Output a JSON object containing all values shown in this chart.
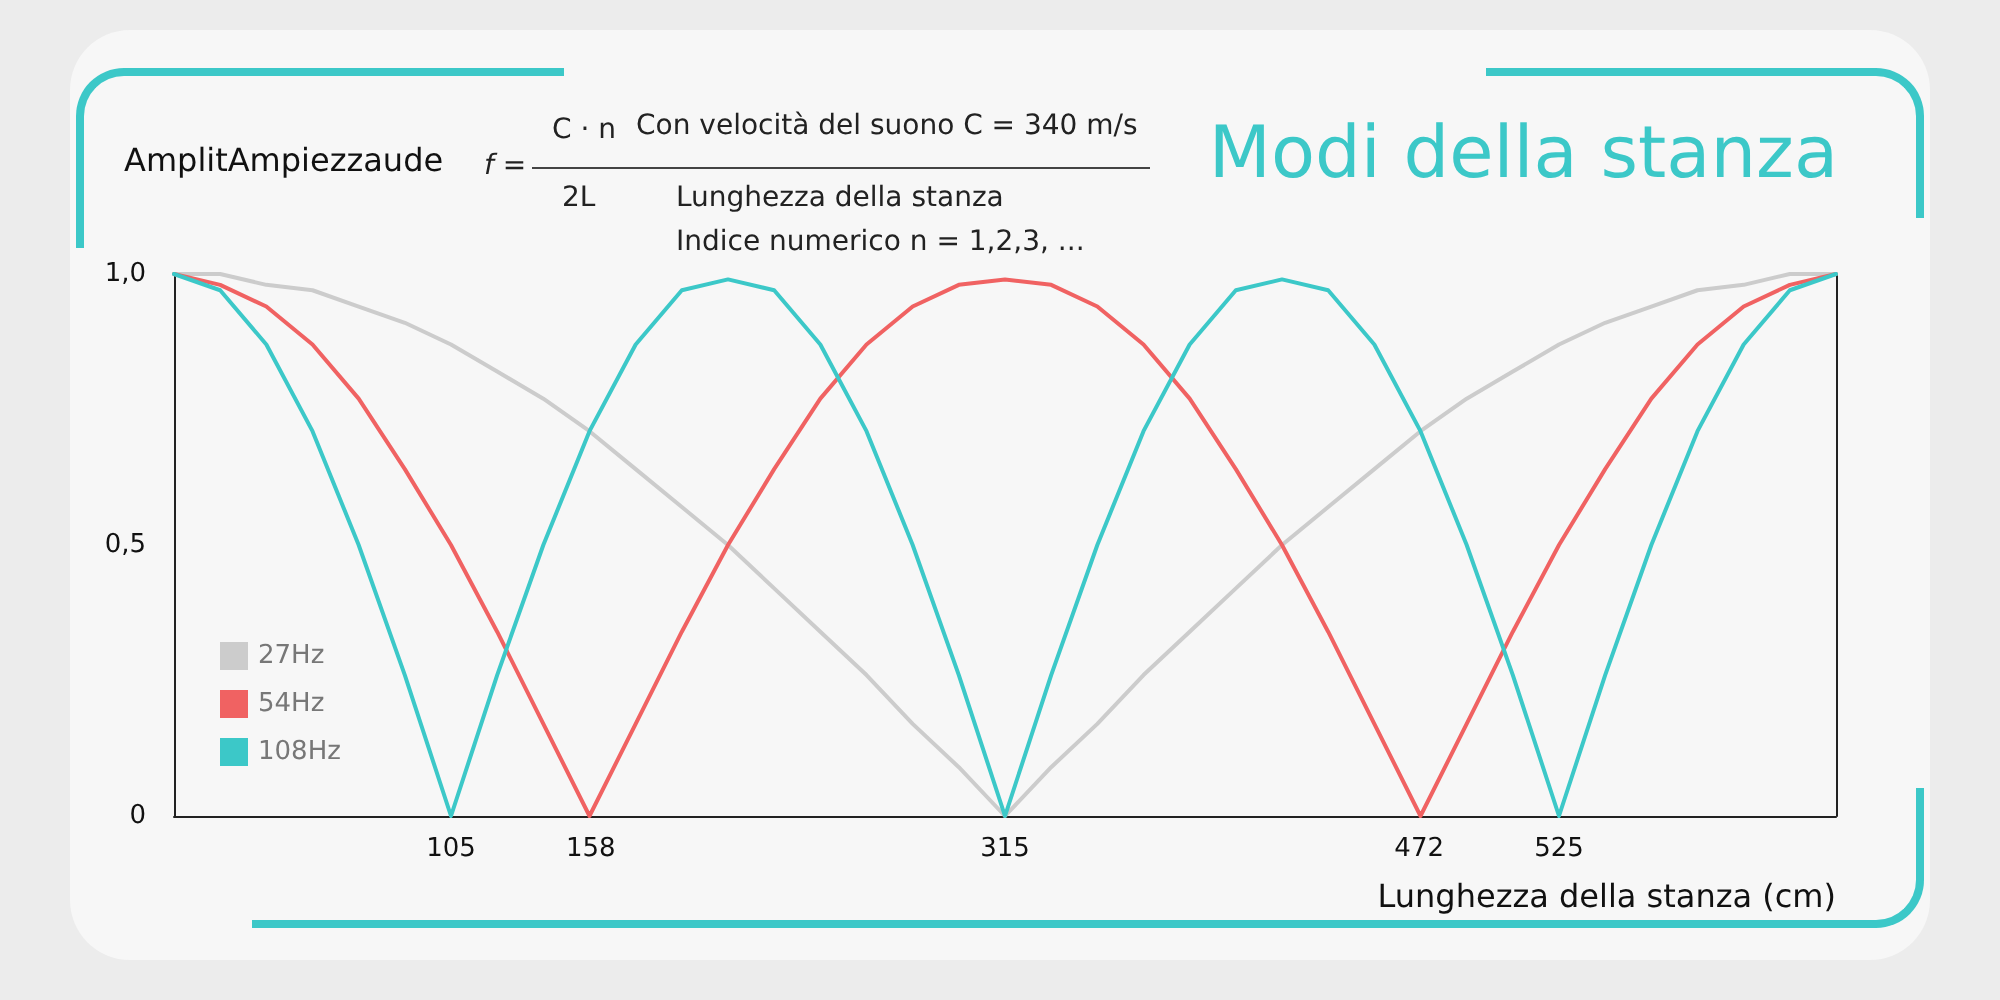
{
  "chart_data": {
    "type": "line",
    "title": "Modi della stanza",
    "ylabel": "AmplitAmpiezzaude",
    "xlabel": "Lunghezza della stanza (cm)",
    "annotations": [
      "f =",
      "C · n",
      "2L",
      "Con velocità del suono C = 340 m/s",
      "Lunghezza della stanza",
      "Indice numerico n = 1,2,3, ..."
    ],
    "x": [
      0,
      17.5,
      35,
      52.5,
      70,
      87.5,
      105,
      122.5,
      140,
      157.5,
      175,
      192.5,
      210,
      227.5,
      245,
      262.5,
      280,
      297.5,
      315,
      332.5,
      350,
      367.5,
      385,
      402.5,
      420,
      437.5,
      455,
      472.5,
      490,
      507.5,
      525,
      542.5,
      560,
      577.5,
      595,
      612.5,
      630
    ],
    "series": [
      {
        "name": "27Hz",
        "color": "#cccccc",
        "values": [
          1,
          1,
          0.98,
          0.97,
          0.94,
          0.91,
          0.87,
          0.82,
          0.77,
          0.71,
          0.64,
          0.57,
          0.5,
          0.42,
          0.34,
          0.26,
          0.17,
          0.09,
          0,
          0.09,
          0.17,
          0.26,
          0.34,
          0.42,
          0.5,
          0.57,
          0.64,
          0.71,
          0.77,
          0.82,
          0.87,
          0.91,
          0.94,
          0.97,
          0.98,
          1,
          1
        ]
      },
      {
        "name": "54Hz",
        "color": "#f06262",
        "values": [
          1,
          0.98,
          0.94,
          0.87,
          0.77,
          0.64,
          0.5,
          0.34,
          0.17,
          0,
          0.17,
          0.34,
          0.5,
          0.64,
          0.77,
          0.87,
          0.94,
          0.98,
          0.99,
          0.98,
          0.94,
          0.87,
          0.77,
          0.64,
          0.5,
          0.34,
          0.17,
          0,
          0.17,
          0.34,
          0.5,
          0.64,
          0.77,
          0.87,
          0.94,
          0.98,
          1
        ]
      },
      {
        "name": "108Hz",
        "color": "#3cc8c8",
        "values": [
          1,
          0.97,
          0.87,
          0.71,
          0.5,
          0.26,
          0,
          0.26,
          0.5,
          0.71,
          0.87,
          0.97,
          0.99,
          0.97,
          0.87,
          0.71,
          0.5,
          0.26,
          0,
          0.26,
          0.5,
          0.71,
          0.87,
          0.97,
          0.99,
          0.97,
          0.87,
          0.71,
          0.5,
          0.26,
          0,
          0.26,
          0.5,
          0.71,
          0.87,
          0.97,
          1
        ]
      }
    ],
    "xlim": [
      0,
      630
    ],
    "xticks": [
      105,
      158,
      315,
      472,
      525
    ],
    "ylim": [
      0,
      1
    ],
    "yticks": [
      {
        "value": 0,
        "label": "0"
      },
      {
        "value": 0.5,
        "label": "0,5"
      },
      {
        "value": 1,
        "label": "1,0"
      }
    ],
    "grid": false,
    "legend": "bottom left",
    "marker": "none",
    "line_style": "solid"
  }
}
